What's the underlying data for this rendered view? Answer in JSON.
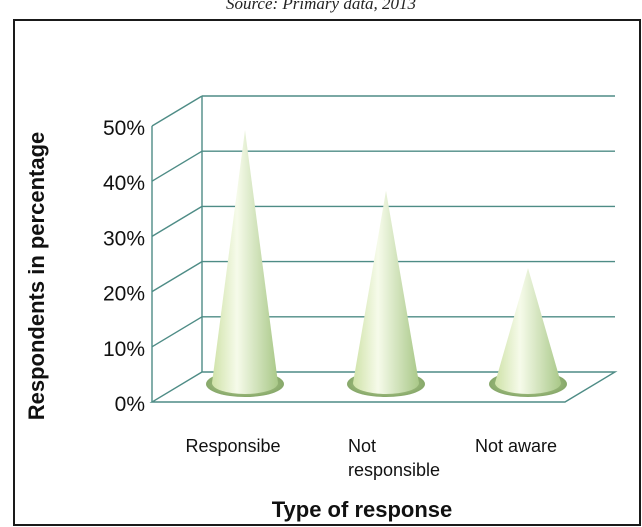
{
  "source_note": "Source: Primary data, 2013",
  "chart_data": {
    "type": "bar",
    "subtype": "3d-cone",
    "categories": [
      "Responsibe",
      "Not responsible",
      "Not aware"
    ],
    "category_lines": [
      [
        "Responsibe"
      ],
      [
        "Not",
        "responsible"
      ],
      [
        "Not aware"
      ]
    ],
    "values": [
      46,
      35,
      21
    ],
    "value_unit": "%",
    "ylim": [
      0,
      50
    ],
    "y_ticks": [
      "0%",
      "10%",
      "20%",
      "30%",
      "40%",
      "50%"
    ],
    "ylabel": "Respondents in percentage",
    "xlabel": "Type of response",
    "grid": true,
    "legend": "none",
    "colors": {
      "cone_light": "#f4fae6",
      "cone_mid": "#d9ebb9",
      "cone_dark": "#a9c888",
      "grid": "#4e8c86",
      "frame": "#1a1a1a"
    }
  }
}
